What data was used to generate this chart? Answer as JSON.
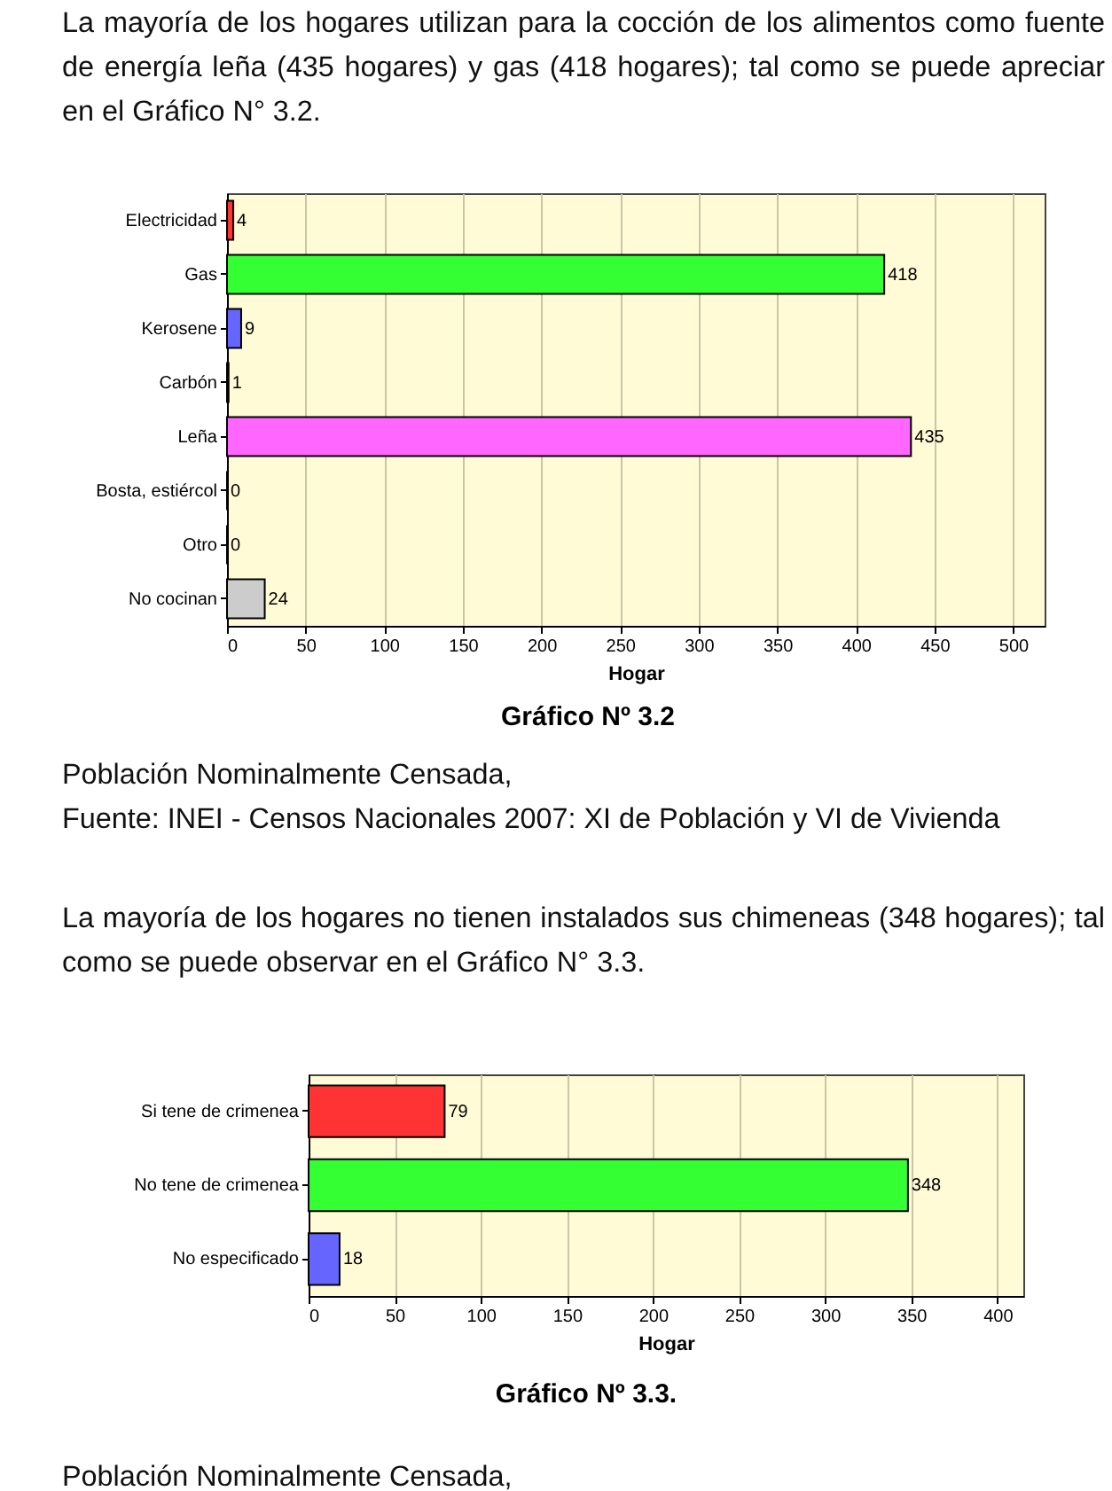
{
  "chart_data": [
    {
      "type": "bar",
      "orientation": "horizontal",
      "title": "Gráfico Nº 3.2",
      "xlabel": "Hogar",
      "categories": [
        "Electricidad",
        "Gas",
        "Kerosene",
        "Carbón",
        "Leña",
        "Bosta, estiércol",
        "Otro",
        "No cocinan"
      ],
      "values": [
        4,
        418,
        9,
        1,
        435,
        0,
        0,
        24
      ],
      "colors": [
        "#ff3333",
        "#33ff33",
        "#6666ff",
        "#000000",
        "#ff66ff",
        "#000000",
        "#000000",
        "#cccccc"
      ],
      "xlim": [
        0,
        520
      ],
      "xticks": [
        0,
        50,
        100,
        150,
        200,
        250,
        300,
        350,
        400,
        450,
        500
      ],
      "grid": "x",
      "data_labels": true,
      "annotations": [
        "La mayoría de los hogares utilizan para la cocción de los alimentos como fuente de energía leña (435 hogares) y gas (418 hogares); tal como se puede apreciar en el Gráfico N° 3.2.",
        "Población Nominalmente Censada,",
        "Fuente: INEI - Censos Nacionales 2007: XI de Población y VI de Vivienda"
      ]
    },
    {
      "type": "bar",
      "orientation": "horizontal",
      "title": "Gráfico Nº 3.3.",
      "xlabel": "Hogar",
      "categories": [
        "Si tene de crimenea",
        "No tene de crimenea",
        "No especificado"
      ],
      "values": [
        79,
        348,
        18
      ],
      "colors": [
        "#ff3333",
        "#33ff33",
        "#6666ff"
      ],
      "xlim": [
        0,
        415
      ],
      "xticks": [
        0,
        50,
        100,
        150,
        200,
        250,
        300,
        350,
        400
      ],
      "grid": "x",
      "data_labels": true,
      "annotations": [
        "La mayoría de los hogares no tienen instalados sus chimeneas (348 hogares); tal como se puede observar en el Gráfico N° 3.3.",
        "Población Nominalmente Censada,"
      ]
    }
  ]
}
